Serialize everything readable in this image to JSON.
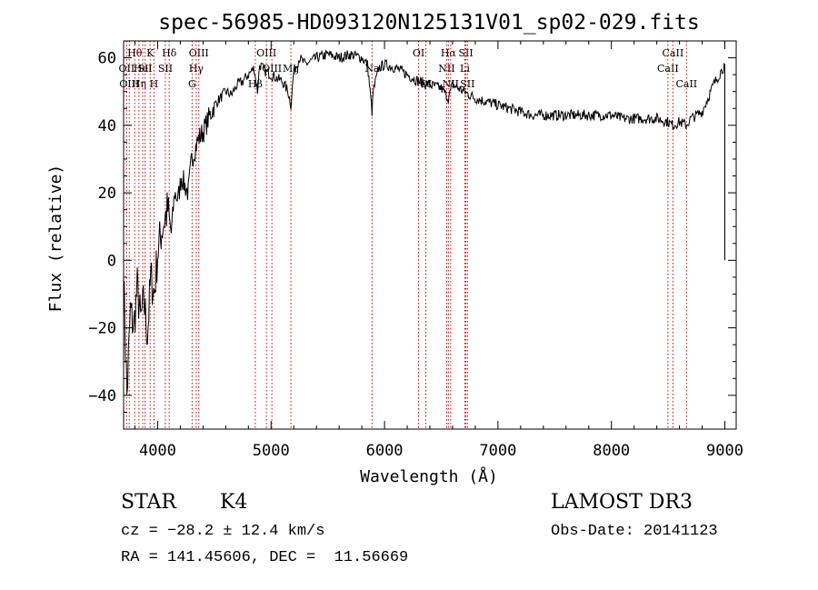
{
  "chart_data": {
    "type": "line",
    "title": "spec-56985-HD093120N125131V01_sp02-029.fits",
    "xlabel": "Wavelength (Å)",
    "ylabel": "Flux (relative)",
    "xlim": [
      3700,
      9100
    ],
    "ylim": [
      -50,
      65
    ],
    "x_ticks": [
      4000,
      5000,
      6000,
      7000,
      8000,
      9000
    ],
    "x_tick_labels": [
      "4000",
      "5000",
      "6000",
      "7000",
      "8000",
      "9000"
    ],
    "y_ticks": [
      -40,
      -20,
      0,
      20,
      40,
      60
    ],
    "y_tick_labels": [
      "−40",
      "−20",
      "0",
      "20",
      "40",
      "60"
    ],
    "grid": false,
    "line_color": "#000000",
    "marker_color": "#cc0000",
    "series": [
      {
        "x": [
          3700,
          3730,
          3760,
          3790,
          3820,
          3850,
          3880,
          3910,
          3940,
          3970,
          4000,
          4030,
          4060,
          4090,
          4120,
          4150,
          4180,
          4210,
          4240,
          4270,
          4300,
          4330,
          4360,
          4400,
          4450,
          4500,
          4550,
          4600,
          4650,
          4700,
          4750,
          4800,
          4850,
          4880,
          4900,
          4950,
          5000,
          5050,
          5100,
          5150,
          5175,
          5200,
          5250,
          5300,
          5400,
          5500,
          5600,
          5700,
          5800,
          5850,
          5890,
          5900,
          5950,
          6000,
          6100,
          6200,
          6300,
          6400,
          6500,
          6563,
          6600,
          6700,
          6800,
          6900,
          7000,
          7100,
          7200,
          7300,
          7400,
          7500,
          7600,
          7700,
          7800,
          7900,
          8000,
          8100,
          8200,
          8300,
          8400,
          8500,
          8542,
          8600,
          8662,
          8700,
          8750,
          8800,
          8850,
          8900,
          8950,
          9000,
          9010
        ],
        "y": [
          -5,
          -40,
          -15,
          -20,
          -8,
          -18,
          -12,
          -22,
          -5,
          -10,
          2,
          8,
          12,
          15,
          8,
          20,
          18,
          25,
          22,
          20,
          30,
          33,
          36,
          38,
          42,
          46,
          48,
          50,
          49,
          52,
          53,
          55,
          57,
          50,
          58,
          56,
          55,
          54,
          53,
          50,
          46,
          56,
          60,
          58,
          60,
          61,
          60,
          61,
          60,
          58,
          44,
          50,
          57,
          58,
          57,
          55,
          53,
          52,
          51,
          48,
          52,
          50,
          48,
          47,
          46,
          45,
          44,
          43,
          43,
          43,
          43,
          43,
          43,
          43,
          43,
          42,
          42,
          42,
          42,
          41,
          40,
          41,
          40,
          42,
          43,
          44,
          48,
          52,
          55,
          58,
          0
        ]
      }
    ],
    "lines": [
      {
        "x": 3727,
        "label": "OII",
        "row": 1
      },
      {
        "x": 3750,
        "label": "OIII",
        "row": 2
      },
      {
        "x": 3798,
        "label": "Hθ",
        "row": 0
      },
      {
        "x": 3835,
        "label": "Hη",
        "row": 2
      },
      {
        "x": 3869,
        "label": "HeI",
        "row": 1
      },
      {
        "x": 3889,
        "label": "SII",
        "row": 1
      },
      {
        "x": 3934,
        "label": "K",
        "row": 0
      },
      {
        "x": 3968,
        "label": "H",
        "row": 2
      },
      {
        "x": 4102,
        "label": "Hδ",
        "row": 0
      },
      {
        "x": 4068,
        "label": "SII",
        "row": 1
      },
      {
        "x": 4304,
        "label": "G",
        "row": 2
      },
      {
        "x": 4340,
        "label": "Hγ",
        "row": 1
      },
      {
        "x": 4363,
        "label": "OIII",
        "row": 0
      },
      {
        "x": 4861,
        "label": "Hβ",
        "row": 2
      },
      {
        "x": 4959,
        "label": "OIII",
        "row": 0
      },
      {
        "x": 5007,
        "label": "OIII",
        "row": 1
      },
      {
        "x": 5175,
        "label": "Mg",
        "row": 1
      },
      {
        "x": 5890,
        "label": "Na",
        "row": 1
      },
      {
        "x": 6300,
        "label": "OI",
        "row": 0
      },
      {
        "x": 6364,
        "label": "OI",
        "row": 2
      },
      {
        "x": 6548,
        "label": "NII",
        "row": 1
      },
      {
        "x": 6563,
        "label": "Hα",
        "row": 0
      },
      {
        "x": 6583,
        "label": "NII",
        "row": 2
      },
      {
        "x": 6708,
        "label": "Li",
        "row": 1
      },
      {
        "x": 6717,
        "label": "SII",
        "row": 0
      },
      {
        "x": 6731,
        "label": "SII",
        "row": 2
      },
      {
        "x": 8498,
        "label": "CaII",
        "row": 1
      },
      {
        "x": 8542,
        "label": "CaII",
        "row": 0
      },
      {
        "x": 8662,
        "label": "CaII",
        "row": 2
      }
    ]
  },
  "info": {
    "class_label": "STAR",
    "subclass": "K4",
    "cz": "cz = −28.2 ± 12.4 km/s",
    "coords": "RA = 141.45606, DEC =  11.56669",
    "survey": "LAMOST DR3",
    "obs_date": "Obs-Date: 20141123"
  }
}
